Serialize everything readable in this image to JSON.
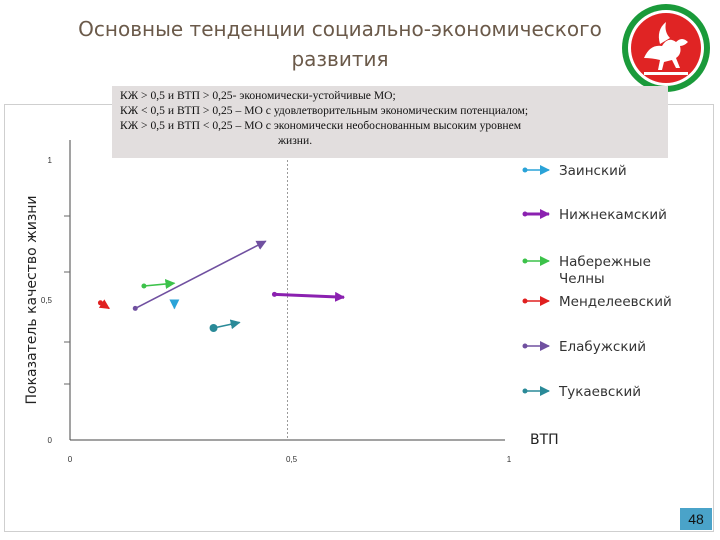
{
  "slide": {
    "title_line1": "Основные тенденции социально-экономического",
    "title_line2": "развития",
    "page_number": "48"
  },
  "note": {
    "lines": [
      "КЖ > 0,5 и ВТП > 0,25- экономически-устойчивые МО;",
      "КЖ < 0,5 и ВТП > 0,25 – МО с удовлетворительным экономическим потенциалом;",
      "КЖ > 0,5 и ВТП < 0,25 – МО с экономически необоснованным высоким уровнем",
      "жизни."
    ]
  },
  "emblem": {
    "name": "tatarstan-coat-of-arms",
    "colors": {
      "field": "#e02424",
      "border": "#1a9a3a",
      "figure": "#ffffff"
    }
  },
  "chart_data": {
    "type": "line",
    "title": "",
    "xlabel": "ВТП",
    "ylabel": "Показатель качество жизни",
    "xlim": [
      0,
      1
    ],
    "ylim": [
      0,
      1
    ],
    "x_ticks": [
      "0",
      "0,5",
      "1"
    ],
    "y_ticks": [
      "0",
      "0,5",
      "1"
    ],
    "reference_lines": [
      {
        "axis": "x",
        "value": 0.5
      }
    ],
    "legend_position": "right",
    "series": [
      {
        "name": "Заинский",
        "color": "#2aa3d8",
        "x": [
          0.24,
          0.24
        ],
        "y": [
          0.49,
          0.47
        ]
      },
      {
        "name": "Нижнекамский",
        "color": "#8b21b0",
        "x": [
          0.47,
          0.63
        ],
        "y": [
          0.52,
          0.51
        ]
      },
      {
        "name": "Набережные Челны",
        "color": "#3cc24a",
        "x": [
          0.17,
          0.24
        ],
        "y": [
          0.55,
          0.56
        ]
      },
      {
        "name": "Менделеевский",
        "color": "#e02020",
        "x": [
          0.07,
          0.09
        ],
        "y": [
          0.49,
          0.47
        ]
      },
      {
        "name": "Елабужский",
        "color": "#7050a0",
        "x": [
          0.15,
          0.45
        ],
        "y": [
          0.47,
          0.71
        ]
      },
      {
        "name": "Тукаевский",
        "color": "#2a8a98",
        "x": [
          0.33,
          0.39
        ],
        "y": [
          0.4,
          0.42
        ]
      }
    ]
  }
}
